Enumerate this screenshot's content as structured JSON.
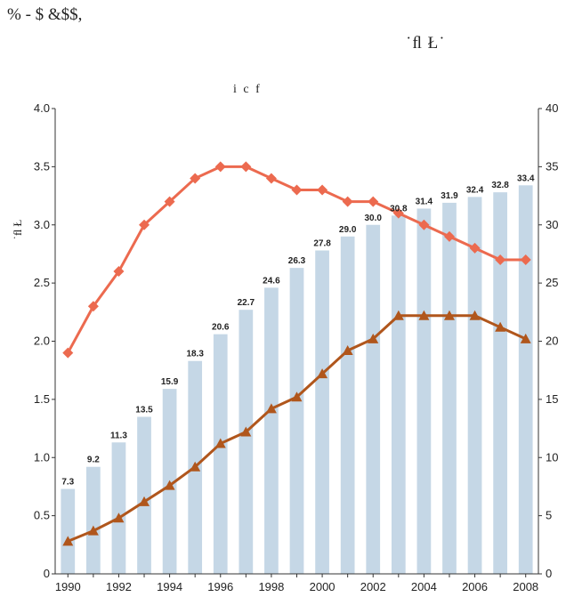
{
  "header": {
    "left_text": "% - $     &$$,",
    "right_text": "˙ﬂ       Ł˙"
  },
  "chart_data": {
    "type": "bar+line",
    "title": "i     c  f",
    "ylabel_left": "˙ﬂ     Ł",
    "categories": [
      1990,
      1991,
      1992,
      1993,
      1994,
      1995,
      1996,
      1997,
      1998,
      1999,
      2000,
      2001,
      2002,
      2003,
      2004,
      2005,
      2006,
      2007,
      2008
    ],
    "x_tick_labels": [
      "1990",
      "1992",
      "1994",
      "1996",
      "1998",
      "2000",
      "2002",
      "2004",
      "2006",
      "2008"
    ],
    "y_left_ticks": [
      "0",
      "0.5",
      "1.0",
      "1.5",
      "2.0",
      "2.5",
      "3.0",
      "3.5",
      "4.0"
    ],
    "y_right_ticks": [
      "0",
      "5",
      "10",
      "15",
      "20",
      "25",
      "30",
      "35",
      "40"
    ],
    "ylim_left": [
      0,
      4.0
    ],
    "ylim_right": [
      0,
      40
    ],
    "series": [
      {
        "axis": "right",
        "type": "bar",
        "color": "#c5d7e6",
        "values": [
          7.3,
          9.2,
          11.3,
          13.5,
          15.9,
          18.3,
          20.6,
          22.7,
          24.6,
          26.3,
          27.8,
          29.0,
          30.0,
          30.8,
          31.4,
          31.9,
          32.4,
          32.8,
          33.4
        ],
        "labels": [
          "7.3",
          "9.2",
          "11.3",
          "13.5",
          "15.9",
          "18.3",
          "20.6",
          "22.7",
          "24.6",
          "26.3",
          "27.8",
          "29.0",
          "30.0",
          "30.8",
          "31.4",
          "31.9",
          "32.4",
          "32.8",
          "33.4"
        ]
      },
      {
        "axis": "left",
        "type": "line",
        "marker": "diamond",
        "color": "#ec6a4f",
        "values": [
          1.9,
          2.3,
          2.6,
          3.0,
          3.2,
          3.4,
          3.5,
          3.5,
          3.4,
          3.3,
          3.3,
          3.2,
          3.2,
          3.1,
          3.0,
          2.9,
          2.8,
          2.7,
          2.7
        ]
      },
      {
        "axis": "left",
        "type": "line",
        "marker": "triangle",
        "color": "#b0561c",
        "values": [
          0.28,
          0.37,
          0.48,
          0.62,
          0.76,
          0.92,
          1.12,
          1.22,
          1.42,
          1.52,
          1.72,
          1.92,
          2.02,
          2.22,
          2.22,
          2.22,
          2.22,
          2.12,
          2.02
        ]
      }
    ]
  }
}
